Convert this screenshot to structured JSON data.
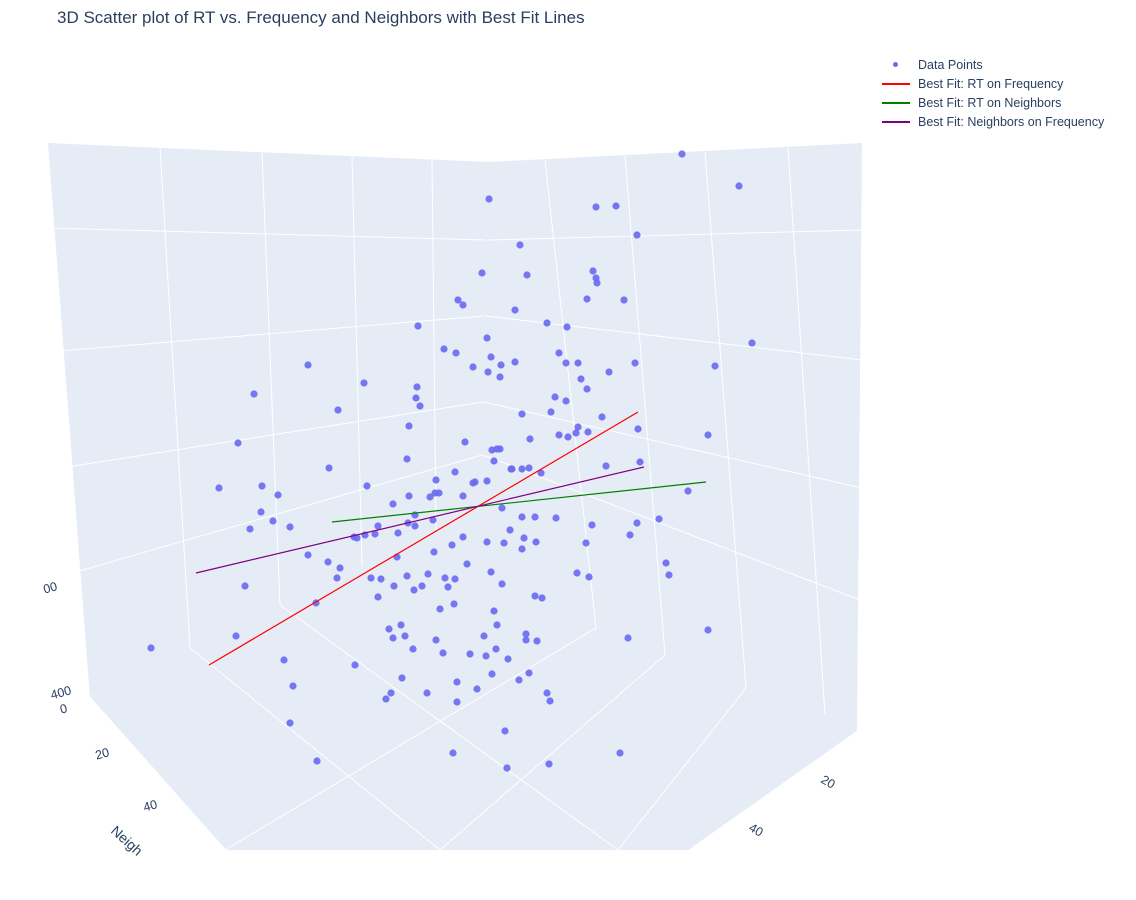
{
  "chart_data": {
    "type": "scatter",
    "subtype": "3d-scatter",
    "title": "3D Scatter plot of RT vs. Frequency and Neighbors with Best Fit Lines",
    "legend_position": "top-right",
    "grid": true,
    "axes": {
      "neighbors": {
        "label": "Neigh",
        "ticks": [
          "0",
          "20",
          "40"
        ]
      },
      "frequency": {
        "label": "",
        "ticks": [
          "20",
          "40"
        ]
      },
      "rt": {
        "label": "",
        "ticks": [
          "400",
          "00"
        ]
      }
    },
    "series": [
      {
        "name": "Data Points",
        "kind": "markers",
        "color": "#6b6bf0"
      },
      {
        "name": "Best Fit: RT on Frequency",
        "kind": "line",
        "color": "#ff0000"
      },
      {
        "name": "Best Fit: RT on Neighbors",
        "kind": "line",
        "color": "#008000"
      },
      {
        "name": "Best Fit: Neighbors on Frequency",
        "kind": "line",
        "color": "#800080"
      }
    ],
    "projected_points": [
      [
        682,
        154
      ],
      [
        739,
        186
      ],
      [
        489,
        199
      ],
      [
        596,
        207
      ],
      [
        616,
        206
      ],
      [
        637,
        235
      ],
      [
        520,
        245
      ],
      [
        482,
        273
      ],
      [
        527,
        275
      ],
      [
        593,
        271
      ],
      [
        596,
        278
      ],
      [
        597,
        283
      ],
      [
        587,
        299
      ],
      [
        624,
        300
      ],
      [
        458,
        300
      ],
      [
        463,
        305
      ],
      [
        515,
        310
      ],
      [
        547,
        323
      ],
      [
        567,
        327
      ],
      [
        418,
        326
      ],
      [
        752,
        343
      ],
      [
        444,
        349
      ],
      [
        456,
        353
      ],
      [
        487,
        338
      ],
      [
        491,
        357
      ],
      [
        473,
        367
      ],
      [
        488,
        372
      ],
      [
        501,
        365
      ],
      [
        500,
        377
      ],
      [
        515,
        362
      ],
      [
        559,
        353
      ],
      [
        566,
        363
      ],
      [
        578,
        363
      ],
      [
        635,
        363
      ],
      [
        715,
        366
      ],
      [
        308,
        365
      ],
      [
        254,
        394
      ],
      [
        364,
        383
      ],
      [
        417,
        387
      ],
      [
        416,
        398
      ],
      [
        420,
        406
      ],
      [
        581,
        379
      ],
      [
        587,
        389
      ],
      [
        609,
        372
      ],
      [
        555,
        397
      ],
      [
        566,
        401
      ],
      [
        551,
        412
      ],
      [
        522,
        414
      ],
      [
        602,
        417
      ],
      [
        638,
        429
      ],
      [
        578,
        427
      ],
      [
        576,
        433
      ],
      [
        588,
        432
      ],
      [
        568,
        437
      ],
      [
        559,
        435
      ],
      [
        530,
        439
      ],
      [
        708,
        435
      ],
      [
        238,
        443
      ],
      [
        338,
        410
      ],
      [
        409,
        426
      ],
      [
        465,
        442
      ],
      [
        497,
        449
      ],
      [
        500,
        449
      ],
      [
        494,
        461
      ],
      [
        492,
        450
      ],
      [
        407,
        459
      ],
      [
        455,
        472
      ],
      [
        512,
        469
      ],
      [
        511,
        469
      ],
      [
        529,
        468
      ],
      [
        522,
        469
      ],
      [
        541,
        473
      ],
      [
        606,
        466
      ],
      [
        640,
        462
      ],
      [
        329,
        468
      ],
      [
        219,
        488
      ],
      [
        262,
        486
      ],
      [
        278,
        495
      ],
      [
        367,
        486
      ],
      [
        473,
        483
      ],
      [
        475,
        482
      ],
      [
        487,
        481
      ],
      [
        436,
        480
      ],
      [
        435,
        493
      ],
      [
        439,
        493
      ],
      [
        463,
        496
      ],
      [
        430,
        497
      ],
      [
        393,
        504
      ],
      [
        409,
        496
      ],
      [
        415,
        515
      ],
      [
        433,
        520
      ],
      [
        502,
        508
      ],
      [
        522,
        517
      ],
      [
        535,
        517
      ],
      [
        556,
        518
      ],
      [
        592,
        525
      ],
      [
        637,
        523
      ],
      [
        659,
        519
      ],
      [
        688,
        491
      ],
      [
        250,
        529
      ],
      [
        261,
        512
      ],
      [
        273,
        521
      ],
      [
        290,
        527
      ],
      [
        354,
        537
      ],
      [
        357,
        538
      ],
      [
        365,
        535
      ],
      [
        375,
        534
      ],
      [
        378,
        526
      ],
      [
        415,
        526
      ],
      [
        408,
        523
      ],
      [
        398,
        533
      ],
      [
        397,
        557
      ],
      [
        434,
        552
      ],
      [
        452,
        545
      ],
      [
        463,
        537
      ],
      [
        487,
        542
      ],
      [
        510,
        530
      ],
      [
        504,
        543
      ],
      [
        524,
        538
      ],
      [
        522,
        549
      ],
      [
        536,
        542
      ],
      [
        586,
        543
      ],
      [
        630,
        535
      ],
      [
        308,
        555
      ],
      [
        328,
        562
      ],
      [
        337,
        578
      ],
      [
        340,
        568
      ],
      [
        371,
        578
      ],
      [
        381,
        579
      ],
      [
        378,
        597
      ],
      [
        394,
        586
      ],
      [
        407,
        576
      ],
      [
        422,
        586
      ],
      [
        428,
        574
      ],
      [
        445,
        578
      ],
      [
        448,
        587
      ],
      [
        455,
        579
      ],
      [
        467,
        564
      ],
      [
        491,
        572
      ],
      [
        502,
        584
      ],
      [
        535,
        596
      ],
      [
        542,
        598
      ],
      [
        577,
        573
      ],
      [
        589,
        577
      ],
      [
        666,
        563
      ],
      [
        669,
        575
      ],
      [
        708,
        630
      ],
      [
        245,
        586
      ],
      [
        316,
        603
      ],
      [
        414,
        590
      ],
      [
        440,
        609
      ],
      [
        454,
        604
      ],
      [
        494,
        611
      ],
      [
        497,
        625
      ],
      [
        389,
        629
      ],
      [
        401,
        625
      ],
      [
        393,
        638
      ],
      [
        405,
        636
      ],
      [
        413,
        649
      ],
      [
        436,
        640
      ],
      [
        443,
        653
      ],
      [
        470,
        654
      ],
      [
        484,
        636
      ],
      [
        486,
        656
      ],
      [
        496,
        649
      ],
      [
        508,
        659
      ],
      [
        526,
        634
      ],
      [
        526,
        640
      ],
      [
        537,
        641
      ],
      [
        628,
        638
      ],
      [
        151,
        648
      ],
      [
        236,
        636
      ],
      [
        284,
        660
      ],
      [
        355,
        665
      ],
      [
        293,
        686
      ],
      [
        391,
        693
      ],
      [
        386,
        699
      ],
      [
        402,
        678
      ],
      [
        427,
        693
      ],
      [
        457,
        682
      ],
      [
        457,
        702
      ],
      [
        477,
        689
      ],
      [
        492,
        674
      ],
      [
        519,
        680
      ],
      [
        529,
        673
      ],
      [
        547,
        693
      ],
      [
        550,
        701
      ],
      [
        290,
        723
      ],
      [
        317,
        761
      ],
      [
        453,
        753
      ],
      [
        505,
        731
      ],
      [
        507,
        768
      ],
      [
        549,
        764
      ],
      [
        620,
        753
      ]
    ]
  }
}
